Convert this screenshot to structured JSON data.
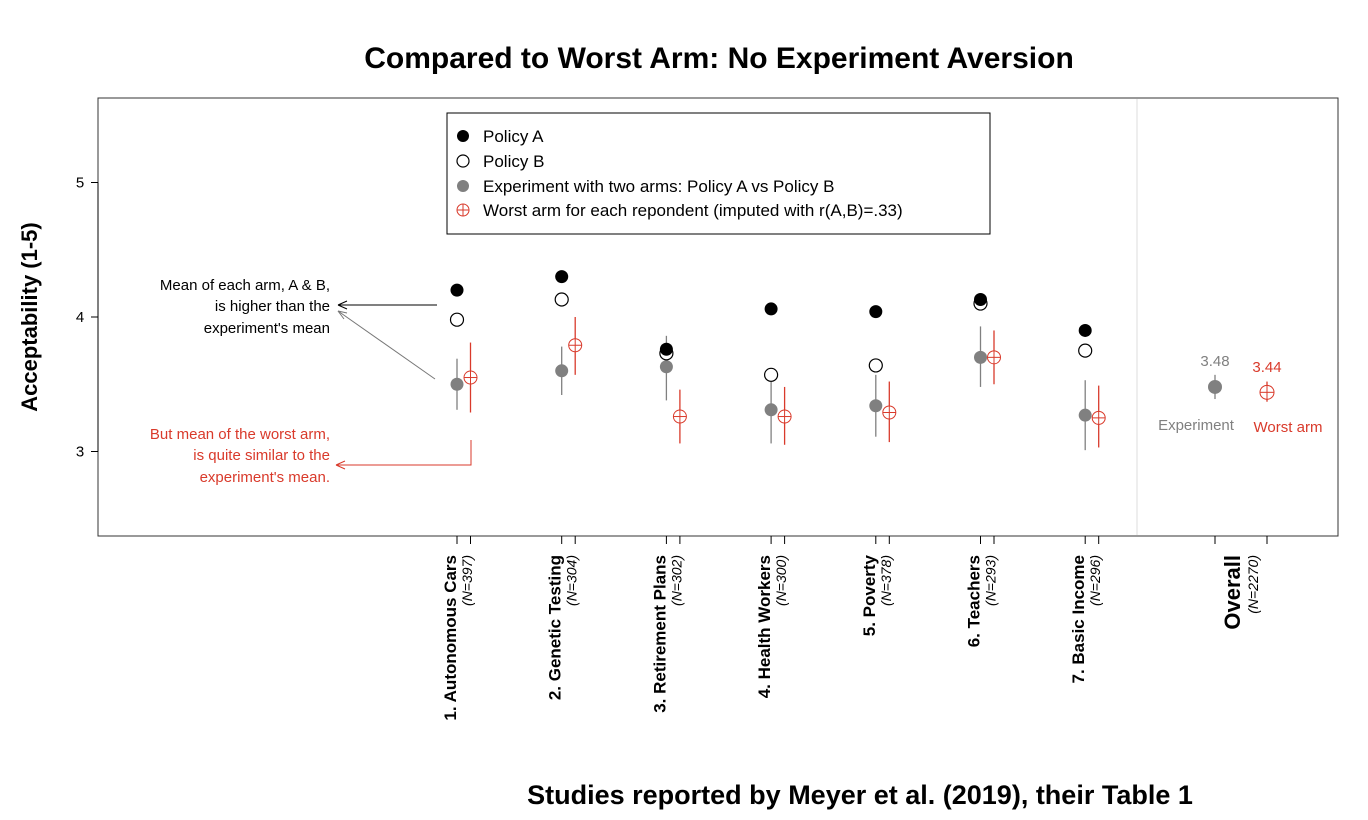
{
  "chart_data": {
    "type": "scatter",
    "title": "Compared to Worst Arm: No Experiment Aversion",
    "xlabel": "Studies reported by Meyer et al. (2019), their Table 1",
    "ylabel": "Acceptability (1-5)",
    "ylim": [
      2.4,
      5.63
    ],
    "yticks": [
      "3",
      "4",
      "5"
    ],
    "grid": false,
    "legend_position": "top-center",
    "colors": {
      "policy_a": "#000000",
      "policy_b": "#000000",
      "experiment": "#808080",
      "worst": "#d93a2b"
    },
    "categories": [
      {
        "label": "1. Autonomous Cars",
        "n": "(N=397)"
      },
      {
        "label": "2. Genetic Testing",
        "n": "(N=304)"
      },
      {
        "label": "3. Retirement Plans",
        "n": "(N=302)"
      },
      {
        "label": "4. Health Workers",
        "n": "(N=300)"
      },
      {
        "label": "5. Poverty",
        "n": "(N=378)"
      },
      {
        "label": "6. Teachers",
        "n": "(N=293)"
      },
      {
        "label": "7. Basic Income",
        "n": "(N=296)"
      }
    ],
    "series": [
      {
        "name": "Policy A",
        "values": [
          4.2,
          4.3,
          3.76,
          4.06,
          4.04,
          4.13,
          3.9
        ]
      },
      {
        "name": "Policy B",
        "values": [
          3.98,
          4.13,
          3.73,
          3.57,
          3.64,
          4.1,
          3.75
        ]
      },
      {
        "name": "Experiment with two arms: Policy A vs Policy B",
        "values": [
          3.5,
          3.6,
          3.63,
          3.31,
          3.34,
          3.7,
          3.27
        ],
        "ci": [
          [
            3.31,
            3.69
          ],
          [
            3.42,
            3.78
          ],
          [
            3.38,
            3.86
          ],
          [
            3.06,
            3.56
          ],
          [
            3.11,
            3.57
          ],
          [
            3.48,
            3.93
          ],
          [
            3.01,
            3.53
          ]
        ]
      },
      {
        "name": "Worst arm for each repondent (imputed with r(A,B)=.33)",
        "values": [
          3.55,
          3.79,
          3.26,
          3.26,
          3.29,
          3.7,
          3.25
        ],
        "ci": [
          [
            3.29,
            3.81
          ],
          [
            3.57,
            4.0
          ],
          [
            3.06,
            3.46
          ],
          [
            3.05,
            3.48
          ],
          [
            3.07,
            3.52
          ],
          [
            3.5,
            3.9
          ],
          [
            3.03,
            3.49
          ]
        ]
      }
    ],
    "overall": {
      "label": "Overall",
      "n": "(N=2270)",
      "experiment": {
        "value": 3.48,
        "ci": [
          3.39,
          3.57
        ],
        "value_label": "3.48",
        "caption": "Experiment"
      },
      "worst": {
        "value": 3.44,
        "ci": [
          3.37,
          3.52
        ],
        "value_label": "3.44",
        "caption": "Worst arm"
      }
    },
    "annotations": {
      "black": [
        "Mean of each arm, A & B,",
        "is higher than the",
        "experiment's mean"
      ],
      "red": [
        "But mean of the worst arm,",
        "is quite similar to the",
        "experiment's mean."
      ]
    }
  }
}
